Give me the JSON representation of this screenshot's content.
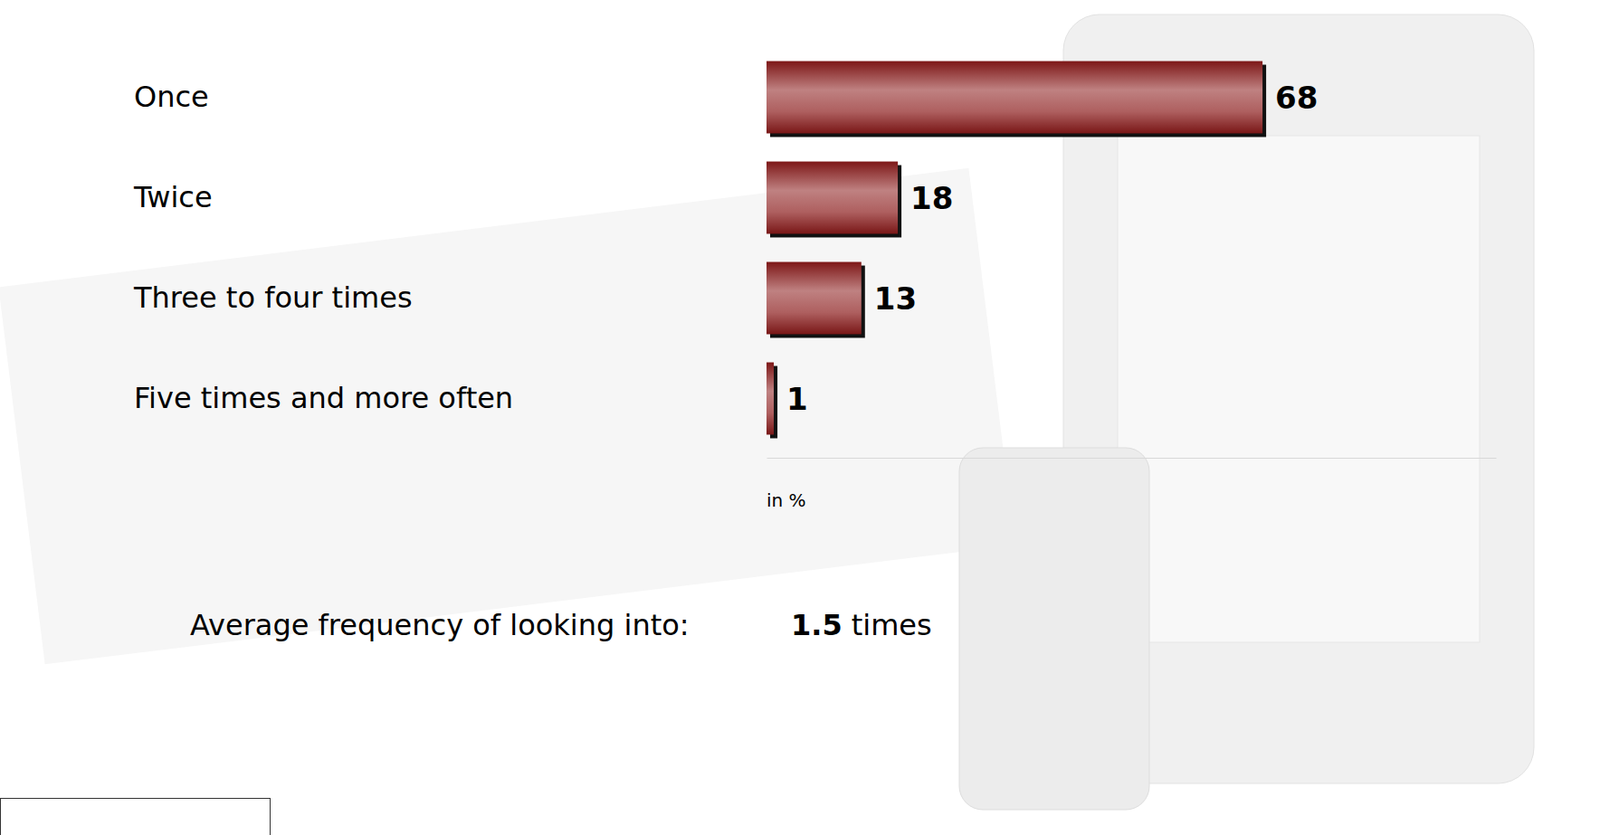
{
  "chart_data": {
    "type": "bar",
    "orientation": "horizontal",
    "categories": [
      "Once",
      "Twice",
      "Three to four times",
      "Five times and more often"
    ],
    "values": [
      68,
      18,
      13,
      1
    ],
    "color": "#8b1a1a",
    "xlim": [
      0,
      100
    ],
    "xticks": [],
    "tick_labels": "y",
    "data_labels": true,
    "grid": false,
    "unit_note": "in %",
    "average": {
      "label": "Average frequency of looking into:",
      "value": 1.5,
      "unit": "times"
    }
  }
}
